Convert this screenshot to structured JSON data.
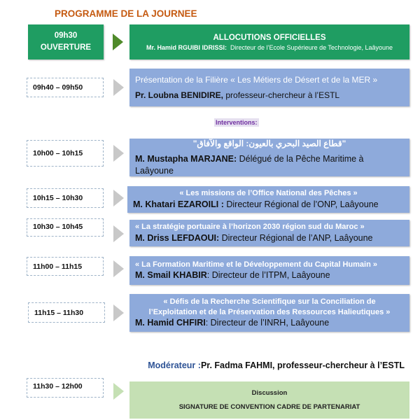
{
  "title": "PROGRAMME DE LA JOURNEE",
  "opening": {
    "time": "09h30",
    "label": "OUVERTURE",
    "heading": "ALLOCUTIONS OFFICIELLES",
    "speaker": "Mr. Hamid RGUIBI IDRISSI:",
    "role": "Directeur de l’Ecole Supérieure de Technologie, Laâyoune"
  },
  "presentation": {
    "time": "09h40 – 09h50",
    "topic": "Présentation de la Filière « Les Métiers de Désert et de la MER »",
    "speaker": "Pr. Loubna BENIDIRE,",
    "role": " professeur-chercheur à l’ESTL"
  },
  "interventions_label": "Interventions:",
  "interventions": [
    {
      "time": "10h00 – 10h15",
      "topic": "\"قطاع الصيد البحري بالعيون: الواقع والآفاق\"",
      "speaker": "M. Mustapha MARJANE:",
      "role": " Délégué de la Pêche Maritime à Laâyoune"
    },
    {
      "time": "10h15 – 10h30",
      "topic": "« Les missions de l’Office National des Pêches »",
      "speaker": "M. Khatari EZAROILI :",
      "role": " Directeur Régional de l’ONP, Laâyoune"
    },
    {
      "time": "10h30 – 10h45",
      "topic": "« La stratégie portuaire à l’horizon 2030 région sud du Maroc »",
      "speaker": "M. Driss LEFDAOUI:",
      "role": " Directeur Régional de l’ANP, Laâyoune"
    },
    {
      "time": "11h00 – 11h15",
      "topic": "« La Formation Maritime et le Développement du Capital Humain »",
      "speaker": "M. Smail KHABIR",
      "role": ": Directeur de l’ITPM, Laâyoune"
    },
    {
      "time": "11h15 – 11h30",
      "topic": "« Défis de la Recherche Scientifique sur la Conciliation de l’Exploitation et de la Préservation des Ressources Halieutiques »",
      "speaker": "M. Hamid CHFIRI",
      "role": ": Directeur de l’INRH, Laâyoune"
    }
  ],
  "moderator": {
    "label": "Modérateur :",
    "name": "Pr. Fadma FAHMI, professeur-chercheur à l’ESTL"
  },
  "closing": {
    "time": "11h30 – 12h00",
    "line1": "Discussion",
    "line2": "SIGNATURE DE CONVENTION CADRE DE PARTENARIAT"
  },
  "colors": {
    "title": "#c55a11",
    "green": "#1f9d62",
    "blue": "#8eaadb",
    "light_green": "#c5e0b4",
    "interventions": "#7030a0",
    "moderator_label": "#2f5496"
  }
}
